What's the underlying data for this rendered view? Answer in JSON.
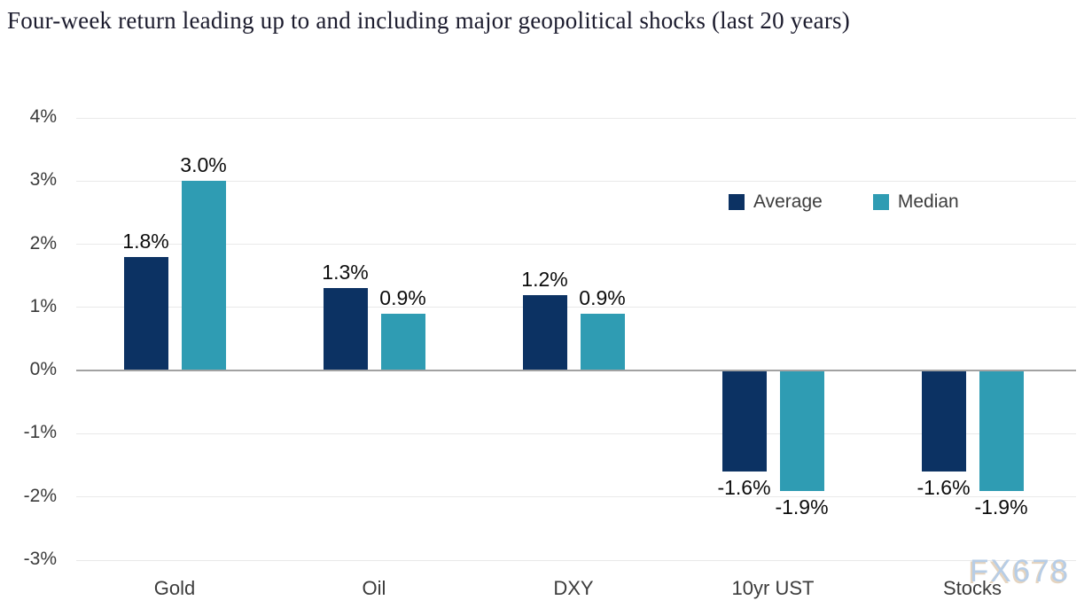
{
  "title": "Four-week return leading up to and including major geopolitical shocks (last 20 years)",
  "watermark": "FX678",
  "colors": {
    "average": "#0c3263",
    "median": "#2f9cb3",
    "grid_line": "#e9e9e9",
    "zero_line": "#a2a2a2",
    "title_text": "#1c1c2e",
    "axis_text": "#3a3a3a",
    "value_label_text": "#0c0c0c",
    "watermark_text": "#b7cde6"
  },
  "legend": {
    "items": [
      {
        "label": "Average",
        "color_key": "average"
      },
      {
        "label": "Median",
        "color_key": "median"
      }
    ],
    "position": "upper right"
  },
  "chart_data": {
    "type": "bar",
    "title": "Four-week return leading up to and including major geopolitical shocks (last 20 years)",
    "xlabel": "",
    "ylabel": "",
    "categories": [
      "Gold",
      "Oil",
      "DXY",
      "10yr UST",
      "Stocks"
    ],
    "series": [
      {
        "name": "Average",
        "values": [
          1.8,
          1.3,
          1.2,
          -1.6,
          -1.6
        ]
      },
      {
        "name": "Median",
        "values": [
          3.0,
          0.9,
          0.9,
          -1.9,
          -1.9
        ]
      }
    ],
    "value_labels": [
      [
        "1.8%",
        "1.3%",
        "1.2%",
        "-1.6%",
        "-1.6%"
      ],
      [
        "3.0%",
        "0.9%",
        "0.9%",
        "-1.9%",
        "-1.9%"
      ]
    ],
    "y_ticks": [
      "4%",
      "3%",
      "2%",
      "1%",
      "0%",
      "-1%",
      "-2%",
      "-3%"
    ],
    "y_tick_values": [
      4,
      3,
      2,
      1,
      0,
      -1,
      -2,
      -3
    ],
    "ylim": [
      -3,
      4
    ],
    "grid": true,
    "legend_position": "upper right"
  }
}
